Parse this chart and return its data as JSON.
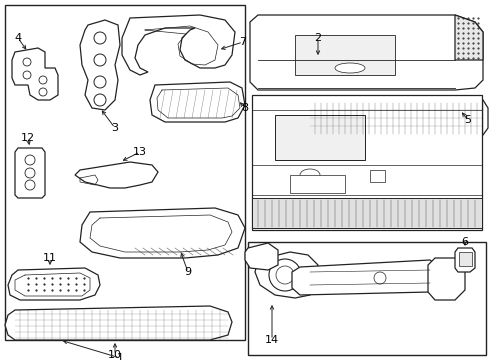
{
  "background_color": "#ffffff",
  "line_color": "#222222",
  "text_color": "#000000",
  "fig_width": 4.9,
  "fig_height": 3.6,
  "dpi": 100
}
